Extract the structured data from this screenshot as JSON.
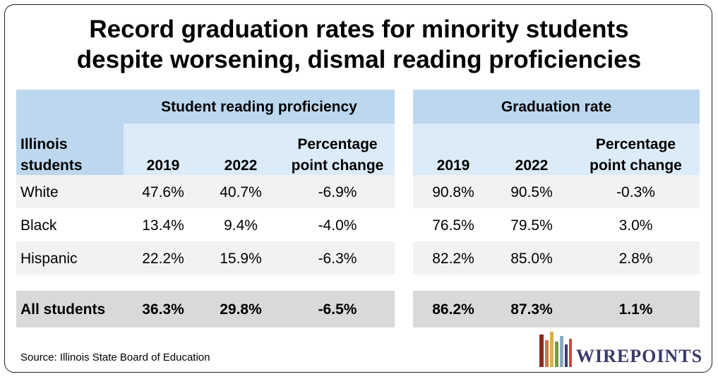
{
  "title_line1": "Record graduation rates for minority students",
  "title_line2": "despite worsening, dismal reading proficiencies",
  "source": "Source: Illinois State Board of Education",
  "logo_text": "WIREPOINTS",
  "colors": {
    "header_dark": "#bdd7ee",
    "header_light": "#dcebf8",
    "row_gray": "#f2f2f2",
    "row_total": "#d9d9d9"
  },
  "chart_data": {
    "type": "table",
    "group_headers": [
      "Student reading proficiency",
      "Graduation rate"
    ],
    "row_header_label_line1": "Illinois",
    "row_header_label_line2": "students",
    "col_headers": {
      "y2019": "2019",
      "y2022": "2022",
      "change_line1": "Percentage",
      "change_line2": "point change"
    },
    "rows": [
      {
        "label": "White",
        "reading": [
          "47.6%",
          "40.7%",
          "-6.9%"
        ],
        "graduation": [
          "90.8%",
          "90.5%",
          "-0.3%"
        ]
      },
      {
        "label": "Black",
        "reading": [
          "13.4%",
          "9.4%",
          "-4.0%"
        ],
        "graduation": [
          "76.5%",
          "79.5%",
          "3.0%"
        ]
      },
      {
        "label": "Hispanic",
        "reading": [
          "22.2%",
          "15.9%",
          "-6.3%"
        ],
        "graduation": [
          "82.2%",
          "85.0%",
          "2.8%"
        ]
      },
      {
        "label": "All students",
        "reading": [
          "36.3%",
          "29.8%",
          "-6.5%"
        ],
        "graduation": [
          "86.2%",
          "87.3%",
          "1.1%"
        ]
      }
    ]
  }
}
